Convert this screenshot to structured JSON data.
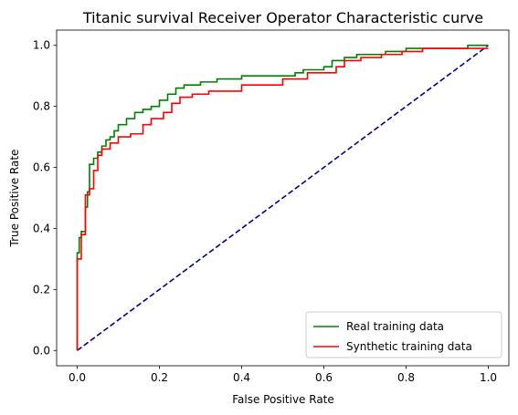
{
  "chart_data": {
    "type": "line",
    "title": "Titanic survival Receiver Operator Characteristic curve",
    "xlabel": "False Positive Rate",
    "ylabel": "True Positive Rate",
    "xlim": [
      -0.05,
      1.05
    ],
    "ylim": [
      -0.05,
      1.05
    ],
    "xticks": [
      0.0,
      0.2,
      0.4,
      0.6,
      0.8,
      1.0
    ],
    "yticks": [
      0.0,
      0.2,
      0.4,
      0.6,
      0.8,
      1.0
    ],
    "grid": false,
    "legend_position": "lower-right",
    "series": [
      {
        "name": "Real training data",
        "color": "#008000",
        "style": "step",
        "x": [
          0.0,
          0.0,
          0.005,
          0.005,
          0.01,
          0.01,
          0.02,
          0.02,
          0.025,
          0.025,
          0.03,
          0.03,
          0.04,
          0.04,
          0.05,
          0.05,
          0.06,
          0.06,
          0.07,
          0.07,
          0.08,
          0.08,
          0.09,
          0.09,
          0.1,
          0.1,
          0.12,
          0.12,
          0.14,
          0.14,
          0.16,
          0.16,
          0.18,
          0.18,
          0.2,
          0.2,
          0.22,
          0.22,
          0.24,
          0.24,
          0.26,
          0.26,
          0.3,
          0.3,
          0.34,
          0.34,
          0.4,
          0.4,
          0.53,
          0.53,
          0.55,
          0.55,
          0.6,
          0.6,
          0.62,
          0.62,
          0.65,
          0.65,
          0.68,
          0.68,
          0.75,
          0.75,
          0.8,
          0.8,
          0.95,
          0.95,
          1.0
        ],
        "y": [
          0.0,
          0.32,
          0.32,
          0.37,
          0.37,
          0.39,
          0.39,
          0.47,
          0.47,
          0.52,
          0.52,
          0.61,
          0.61,
          0.63,
          0.63,
          0.65,
          0.65,
          0.67,
          0.67,
          0.69,
          0.69,
          0.7,
          0.7,
          0.72,
          0.72,
          0.74,
          0.74,
          0.76,
          0.76,
          0.78,
          0.78,
          0.79,
          0.79,
          0.8,
          0.8,
          0.82,
          0.82,
          0.84,
          0.84,
          0.86,
          0.86,
          0.87,
          0.87,
          0.88,
          0.88,
          0.89,
          0.89,
          0.9,
          0.9,
          0.91,
          0.91,
          0.92,
          0.92,
          0.93,
          0.93,
          0.95,
          0.95,
          0.96,
          0.96,
          0.97,
          0.97,
          0.98,
          0.98,
          0.99,
          0.99,
          1.0,
          1.0
        ]
      },
      {
        "name": "Synthetic training data",
        "color": "#ff0000",
        "style": "step",
        "x": [
          0.0,
          0.0,
          0.01,
          0.01,
          0.02,
          0.02,
          0.03,
          0.03,
          0.04,
          0.04,
          0.05,
          0.05,
          0.06,
          0.06,
          0.08,
          0.08,
          0.1,
          0.1,
          0.13,
          0.13,
          0.16,
          0.16,
          0.18,
          0.18,
          0.21,
          0.21,
          0.23,
          0.23,
          0.25,
          0.25,
          0.28,
          0.28,
          0.32,
          0.32,
          0.4,
          0.4,
          0.5,
          0.5,
          0.56,
          0.56,
          0.63,
          0.63,
          0.65,
          0.65,
          0.69,
          0.69,
          0.74,
          0.74,
          0.79,
          0.79,
          0.84,
          0.84,
          1.0
        ],
        "y": [
          0.0,
          0.3,
          0.3,
          0.38,
          0.38,
          0.51,
          0.51,
          0.53,
          0.53,
          0.59,
          0.59,
          0.64,
          0.64,
          0.66,
          0.66,
          0.68,
          0.68,
          0.7,
          0.7,
          0.71,
          0.71,
          0.74,
          0.74,
          0.76,
          0.76,
          0.78,
          0.78,
          0.81,
          0.81,
          0.83,
          0.83,
          0.84,
          0.84,
          0.85,
          0.85,
          0.87,
          0.87,
          0.89,
          0.89,
          0.91,
          0.91,
          0.93,
          0.93,
          0.95,
          0.95,
          0.96,
          0.96,
          0.97,
          0.97,
          0.98,
          0.98,
          0.99,
          0.99
        ]
      },
      {
        "name": "",
        "color": "#00008b",
        "style": "dashed",
        "x": [
          0.0,
          1.0
        ],
        "y": [
          0.0,
          1.0
        ]
      }
    ]
  }
}
